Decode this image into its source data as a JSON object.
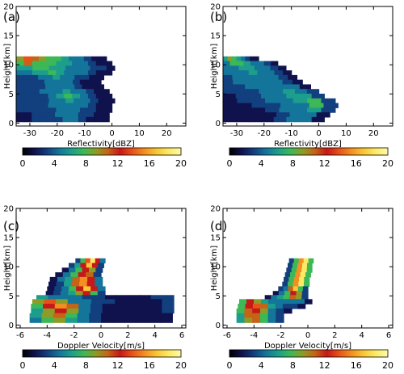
{
  "colors": {
    "colormap": [
      "#000000",
      "#10124e",
      "#123f7e",
      "#14759a",
      "#1d9e8c",
      "#3cb857",
      "#8c9c26",
      "#c56416",
      "#c61818",
      "#e85218",
      "#f38e22",
      "#f8c634",
      "#fcea66",
      "#fffaa8"
    ]
  },
  "chart_data": [
    {
      "panel": "(a)",
      "type": "heatmap",
      "title": "",
      "xlabel": "Reflectivity[dBZ]",
      "ylabel": "Height[km]",
      "xlim": [
        -35,
        27
      ],
      "ylim": [
        -0.5,
        20
      ],
      "xticks": [
        -30,
        -20,
        -10,
        0,
        10,
        20
      ],
      "yticks": [
        0,
        5,
        10,
        15,
        20
      ],
      "colorbar": {
        "range": [
          0,
          20
        ],
        "ticks": [
          0,
          4,
          8,
          12,
          16,
          20
        ]
      },
      "series": [
        {
          "h": 11.0,
          "x0": -35,
          "x1": -2,
          "v": [
            9,
            14,
            11,
            9,
            8,
            7,
            6,
            5,
            4,
            3,
            2,
            2
          ]
        },
        {
          "h": 10.2,
          "x0": -35,
          "x1": 0,
          "v": [
            8,
            10,
            8,
            7,
            7,
            6,
            6,
            5,
            4,
            3,
            2,
            2
          ]
        },
        {
          "h": 9.4,
          "x0": -35,
          "x1": 1,
          "v": [
            6,
            6,
            7,
            7,
            6,
            6,
            5,
            5,
            4,
            3,
            3,
            2
          ]
        },
        {
          "h": 8.6,
          "x0": -35,
          "x1": 0,
          "v": [
            5,
            5,
            6,
            6,
            7,
            6,
            5,
            4,
            4,
            3,
            2,
            2
          ]
        },
        {
          "h": 7.8,
          "x0": -35,
          "x1": -3,
          "v": [
            3,
            3,
            3,
            4,
            5,
            6,
            5,
            4,
            3,
            3,
            2,
            2
          ]
        },
        {
          "h": 7.0,
          "x0": -35,
          "x1": -4,
          "v": [
            3,
            3,
            3,
            3,
            4,
            5,
            5,
            4,
            3,
            2,
            2,
            2
          ]
        },
        {
          "h": 6.2,
          "x0": -35,
          "x1": -3,
          "v": [
            3,
            3,
            3,
            3,
            4,
            5,
            4,
            4,
            3,
            2,
            2,
            2
          ]
        },
        {
          "h": 5.4,
          "x0": -35,
          "x1": -1,
          "v": [
            3,
            3,
            3,
            4,
            4,
            5,
            6,
            5,
            4,
            3,
            2,
            2
          ]
        },
        {
          "h": 4.6,
          "x0": -35,
          "x1": 0,
          "v": [
            3,
            3,
            3,
            3,
            4,
            6,
            7,
            6,
            5,
            3,
            2,
            2
          ]
        },
        {
          "h": 3.8,
          "x0": -35,
          "x1": 1,
          "v": [
            3,
            3,
            3,
            3,
            4,
            5,
            6,
            5,
            4,
            3,
            2,
            2
          ]
        },
        {
          "h": 3.0,
          "x0": -35,
          "x1": 0,
          "v": [
            3,
            3,
            3,
            3,
            4,
            4,
            5,
            4,
            4,
            3,
            2,
            2
          ]
        },
        {
          "h": 2.2,
          "x0": -35,
          "x1": 0,
          "v": [
            3,
            3,
            3,
            3,
            3,
            4,
            4,
            4,
            3,
            3,
            2,
            2
          ]
        },
        {
          "h": 1.4,
          "x0": -35,
          "x1": -1,
          "v": [
            2,
            2,
            3,
            3,
            3,
            4,
            5,
            4,
            3,
            3,
            2,
            2
          ]
        },
        {
          "h": 0.6,
          "x0": -35,
          "x1": -1,
          "v": [
            2,
            2,
            3,
            3,
            3,
            3,
            4,
            4,
            3,
            2,
            2,
            2
          ]
        }
      ]
    },
    {
      "panel": "(b)",
      "type": "heatmap",
      "title": "",
      "xlabel": "Reflectivity[dBZ]",
      "ylabel": "Height[km]",
      "xlim": [
        -35,
        27
      ],
      "ylim": [
        -0.5,
        20
      ],
      "xticks": [
        -30,
        -20,
        -10,
        0,
        10,
        20
      ],
      "yticks": [
        0,
        5,
        10,
        15,
        20
      ],
      "colorbar": {
        "range": [
          0,
          20
        ],
        "ticks": [
          0,
          4,
          8,
          12,
          16,
          20
        ]
      },
      "series": [
        {
          "h": 11.0,
          "x0": -35,
          "x1": -22,
          "v": [
            6,
            9,
            8,
            6,
            4,
            3,
            2,
            2
          ]
        },
        {
          "h": 10.2,
          "x0": -35,
          "x1": -15,
          "v": [
            5,
            7,
            7,
            6,
            5,
            4,
            3,
            2
          ]
        },
        {
          "h": 9.4,
          "x0": -35,
          "x1": -12,
          "v": [
            4,
            5,
            6,
            6,
            5,
            4,
            3,
            2
          ]
        },
        {
          "h": 8.6,
          "x0": -35,
          "x1": -10,
          "v": [
            4,
            4,
            5,
            6,
            5,
            4,
            3,
            2
          ]
        },
        {
          "h": 7.8,
          "x0": -35,
          "x1": -8,
          "v": [
            3,
            4,
            5,
            5,
            5,
            4,
            3,
            2
          ]
        },
        {
          "h": 7.0,
          "x0": -35,
          "x1": -6,
          "v": [
            3,
            4,
            4,
            5,
            5,
            4,
            3,
            2
          ]
        },
        {
          "h": 6.2,
          "x0": -35,
          "x1": -3,
          "v": [
            3,
            3,
            4,
            4,
            5,
            5,
            4,
            2
          ]
        },
        {
          "h": 5.4,
          "x0": -35,
          "x1": 0,
          "v": [
            3,
            3,
            3,
            4,
            5,
            6,
            5,
            3
          ]
        },
        {
          "h": 4.6,
          "x0": -35,
          "x1": 2,
          "v": [
            2,
            3,
            3,
            4,
            5,
            6,
            6,
            3
          ]
        },
        {
          "h": 3.8,
          "x0": -35,
          "x1": 6,
          "v": [
            2,
            3,
            3,
            4,
            5,
            6,
            7,
            3
          ]
        },
        {
          "h": 3.0,
          "x0": -35,
          "x1": 7,
          "v": [
            2,
            2,
            3,
            3,
            4,
            5,
            7,
            3
          ]
        },
        {
          "h": 2.2,
          "x0": -35,
          "x1": 6,
          "v": [
            2,
            2,
            2,
            3,
            4,
            5,
            6,
            3
          ]
        },
        {
          "h": 1.4,
          "x0": -35,
          "x1": 4,
          "v": [
            2,
            2,
            2,
            2,
            3,
            4,
            5,
            2
          ]
        },
        {
          "h": 0.6,
          "x0": -35,
          "x1": 2,
          "v": [
            2,
            2,
            2,
            2,
            3,
            4,
            4,
            2
          ]
        }
      ]
    },
    {
      "panel": "(c)",
      "type": "heatmap",
      "title": "",
      "xlabel": "Doppler Velocity[m/s]",
      "ylabel": "Height[km]",
      "xlim": [
        -6.3,
        6.3
      ],
      "ylim": [
        -0.5,
        20
      ],
      "xticks": [
        -6,
        -4,
        -2,
        0,
        2,
        4,
        6
      ],
      "yticks": [
        0,
        5,
        10,
        15,
        20
      ],
      "colorbar": {
        "range": [
          0,
          20
        ],
        "ticks": [
          0,
          4,
          8,
          12,
          16,
          20
        ]
      },
      "series": [
        {
          "h": 11.0,
          "x0": -1.9,
          "x1": 0.3,
          "v": [
            3,
            8,
            14,
            18,
            12,
            4
          ]
        },
        {
          "h": 10.2,
          "x0": -2.4,
          "x1": 0.2,
          "v": [
            3,
            6,
            12,
            17,
            12,
            3
          ]
        },
        {
          "h": 9.4,
          "x0": -2.9,
          "x1": 0.1,
          "v": [
            2,
            4,
            7,
            12,
            9,
            3
          ]
        },
        {
          "h": 8.6,
          "x0": -3.4,
          "x1": 0.0,
          "v": [
            2,
            4,
            7,
            12,
            10,
            3
          ]
        },
        {
          "h": 7.8,
          "x0": -3.8,
          "x1": 0.1,
          "v": [
            2,
            4,
            6,
            10,
            16,
            12,
            4
          ]
        },
        {
          "h": 7.0,
          "x0": -3.9,
          "x1": 0.1,
          "v": [
            2,
            3,
            6,
            10,
            16,
            12,
            4
          ]
        },
        {
          "h": 6.2,
          "x0": -4.0,
          "x1": 0.3,
          "v": [
            2,
            3,
            5,
            8,
            12,
            17,
            12,
            4
          ]
        },
        {
          "h": 5.4,
          "x0": -4.1,
          "x1": 0.3,
          "v": [
            2,
            3,
            4,
            6,
            9,
            12,
            8,
            3
          ]
        },
        {
          "h": 4.7,
          "x0": -4.8,
          "x1": 5.4,
          "v": [
            6,
            4,
            4,
            4,
            3,
            3,
            2,
            2,
            2,
            2,
            3,
            3
          ]
        },
        {
          "h": 4.0,
          "x0": -5.1,
          "x1": 5.4,
          "v": [
            9,
            14,
            9,
            5,
            4,
            3,
            3,
            2,
            2,
            2,
            2,
            3
          ]
        },
        {
          "h": 3.2,
          "x0": -5.2,
          "x1": 5.4,
          "v": [
            7,
            12,
            15,
            10,
            5,
            3,
            2,
            2,
            2,
            2,
            2,
            3
          ]
        },
        {
          "h": 2.4,
          "x0": -5.2,
          "x1": 5.4,
          "v": [
            6,
            9,
            12,
            9,
            5,
            3,
            2,
            2,
            2,
            2,
            2,
            3
          ]
        },
        {
          "h": 1.6,
          "x0": -5.3,
          "x1": 5.3,
          "v": [
            6,
            9,
            11,
            8,
            4,
            3,
            2,
            2,
            2,
            2,
            2,
            2
          ]
        },
        {
          "h": 0.8,
          "x0": -5.3,
          "x1": 5.3,
          "v": [
            5,
            8,
            9,
            6,
            4,
            3,
            2,
            2,
            2,
            2,
            2,
            2
          ]
        }
      ]
    },
    {
      "panel": "(d)",
      "type": "heatmap",
      "title": "",
      "xlabel": "Doppler Velocity[m/s]",
      "ylabel": "Height[km]",
      "xlim": [
        -6.3,
        6.3
      ],
      "ylim": [
        -0.5,
        20
      ],
      "xticks": [
        -6,
        -4,
        -2,
        0,
        2,
        4,
        6
      ],
      "yticks": [
        0,
        5,
        10,
        15,
        20
      ],
      "colorbar": {
        "range": [
          0,
          20
        ],
        "ticks": [
          0,
          4,
          8,
          12,
          16,
          20
        ]
      },
      "series": [
        {
          "h": 11.0,
          "x0": -1.4,
          "x1": 0.4,
          "v": [
            3,
            7,
            15,
            18,
            8
          ]
        },
        {
          "h": 10.2,
          "x0": -1.5,
          "x1": 0.3,
          "v": [
            3,
            7,
            16,
            18,
            7
          ]
        },
        {
          "h": 9.4,
          "x0": -1.6,
          "x1": 0.3,
          "v": [
            3,
            7,
            16,
            18,
            7
          ]
        },
        {
          "h": 8.6,
          "x0": -1.7,
          "x1": 0.2,
          "v": [
            3,
            7,
            16,
            19,
            7
          ]
        },
        {
          "h": 7.8,
          "x0": -1.8,
          "x1": 0.1,
          "v": [
            3,
            7,
            16,
            19,
            7
          ]
        },
        {
          "h": 7.0,
          "x0": -1.9,
          "x1": 0.1,
          "v": [
            3,
            7,
            16,
            19,
            7
          ]
        },
        {
          "h": 6.2,
          "x0": -2.2,
          "x1": 0.0,
          "v": [
            3,
            5,
            10,
            17,
            8,
            3
          ]
        },
        {
          "h": 5.4,
          "x0": -2.6,
          "x1": 0.0,
          "v": [
            2,
            4,
            7,
            12,
            9,
            3
          ]
        },
        {
          "h": 4.7,
          "x0": -3.2,
          "x1": 0.0,
          "v": [
            2,
            4,
            6,
            8,
            10,
            9,
            3
          ]
        },
        {
          "h": 4.0,
          "x0": -5.1,
          "x1": 0.3,
          "v": [
            8,
            12,
            9,
            6,
            5,
            4,
            4,
            5,
            4,
            2
          ]
        },
        {
          "h": 3.2,
          "x0": -5.2,
          "x1": -0.2,
          "v": [
            8,
            12,
            14,
            10,
            6,
            4,
            3,
            3,
            2
          ]
        },
        {
          "h": 2.4,
          "x0": -5.3,
          "x1": -1.2,
          "v": [
            7,
            11,
            13,
            9,
            5,
            3,
            2
          ]
        },
        {
          "h": 1.6,
          "x0": -5.3,
          "x1": -1.8,
          "v": [
            6,
            10,
            11,
            8,
            4,
            3
          ]
        },
        {
          "h": 0.8,
          "x0": -5.3,
          "x1": -1.8,
          "v": [
            6,
            9,
            10,
            7,
            4,
            3
          ]
        }
      ]
    }
  ]
}
